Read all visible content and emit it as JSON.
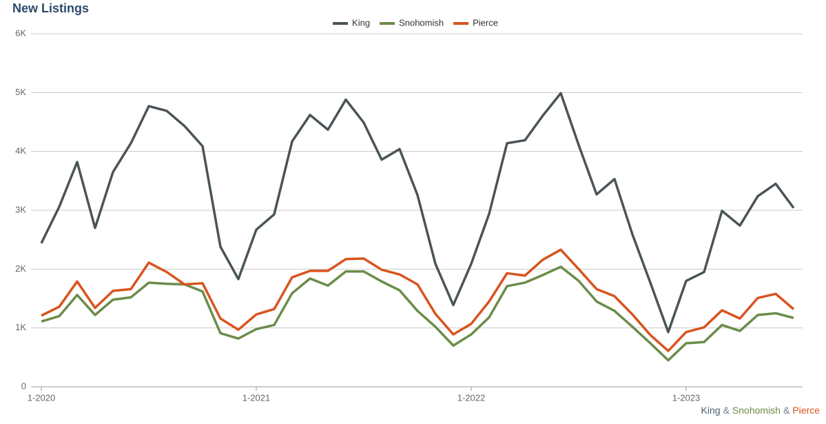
{
  "chart_data": {
    "type": "line",
    "title": "New Listings",
    "categories": [
      "1-2020",
      null,
      null,
      null,
      null,
      null,
      null,
      null,
      null,
      null,
      null,
      null,
      "1-2021",
      null,
      null,
      null,
      null,
      null,
      null,
      null,
      null,
      null,
      null,
      null,
      "1-2022",
      null,
      null,
      null,
      null,
      null,
      null,
      null,
      null,
      null,
      null,
      null,
      "1-2023",
      null,
      null,
      null,
      null,
      null,
      null
    ],
    "series": [
      {
        "name": "King",
        "color": "#4a5457",
        "values": [
          2440,
          3060,
          3820,
          2700,
          3650,
          4140,
          4770,
          4690,
          4430,
          4090,
          2380,
          1830,
          2670,
          2930,
          4170,
          4620,
          4370,
          4880,
          4490,
          3860,
          4040,
          3260,
          2090,
          1390,
          2090,
          2940,
          4140,
          4190,
          4610,
          4990,
          4110,
          3270,
          3530,
          2590,
          1770,
          930,
          1800,
          1950,
          2990,
          2740,
          3240,
          3450,
          3040
        ]
      },
      {
        "name": "Snohomish",
        "color": "#6b8c48",
        "values": [
          1110,
          1200,
          1560,
          1220,
          1480,
          1520,
          1770,
          1750,
          1740,
          1620,
          910,
          820,
          980,
          1050,
          1590,
          1840,
          1720,
          1960,
          1960,
          1790,
          1640,
          1290,
          1020,
          700,
          890,
          1180,
          1710,
          1770,
          1900,
          2040,
          1800,
          1450,
          1290,
          1020,
          740,
          450,
          740,
          760,
          1050,
          950,
          1220,
          1250,
          1170
        ]
      },
      {
        "name": "Pierce",
        "color": "#d9531e",
        "values": [
          1210,
          1360,
          1790,
          1340,
          1630,
          1660,
          2110,
          1950,
          1740,
          1760,
          1160,
          970,
          1230,
          1320,
          1860,
          1970,
          1970,
          2170,
          2180,
          1990,
          1910,
          1740,
          1240,
          890,
          1070,
          1450,
          1930,
          1890,
          2160,
          2330,
          2000,
          1660,
          1540,
          1230,
          880,
          610,
          930,
          1010,
          1300,
          1160,
          1510,
          1580,
          1320
        ]
      }
    ],
    "ylim": [
      0,
      6000
    ],
    "yticks": [
      0,
      {
        "value": 1000,
        "label": "1K"
      },
      {
        "value": 2000,
        "label": "2K"
      },
      {
        "value": 3000,
        "label": "3K"
      },
      {
        "value": 4000,
        "label": "4K"
      },
      {
        "value": 5000,
        "label": "5K"
      },
      {
        "value": 6000,
        "label": "6K"
      }
    ],
    "grid": true,
    "legend": "top",
    "footer": [
      {
        "text": "King",
        "color": "#4a5e70"
      },
      {
        "text": "&",
        "color": "#6b7c8c"
      },
      {
        "text": "Snohomish",
        "color": "#6b8c48"
      },
      {
        "text": "&",
        "color": "#6b7c8c"
      },
      {
        "text": "Pierce",
        "color": "#d9531e"
      }
    ]
  }
}
